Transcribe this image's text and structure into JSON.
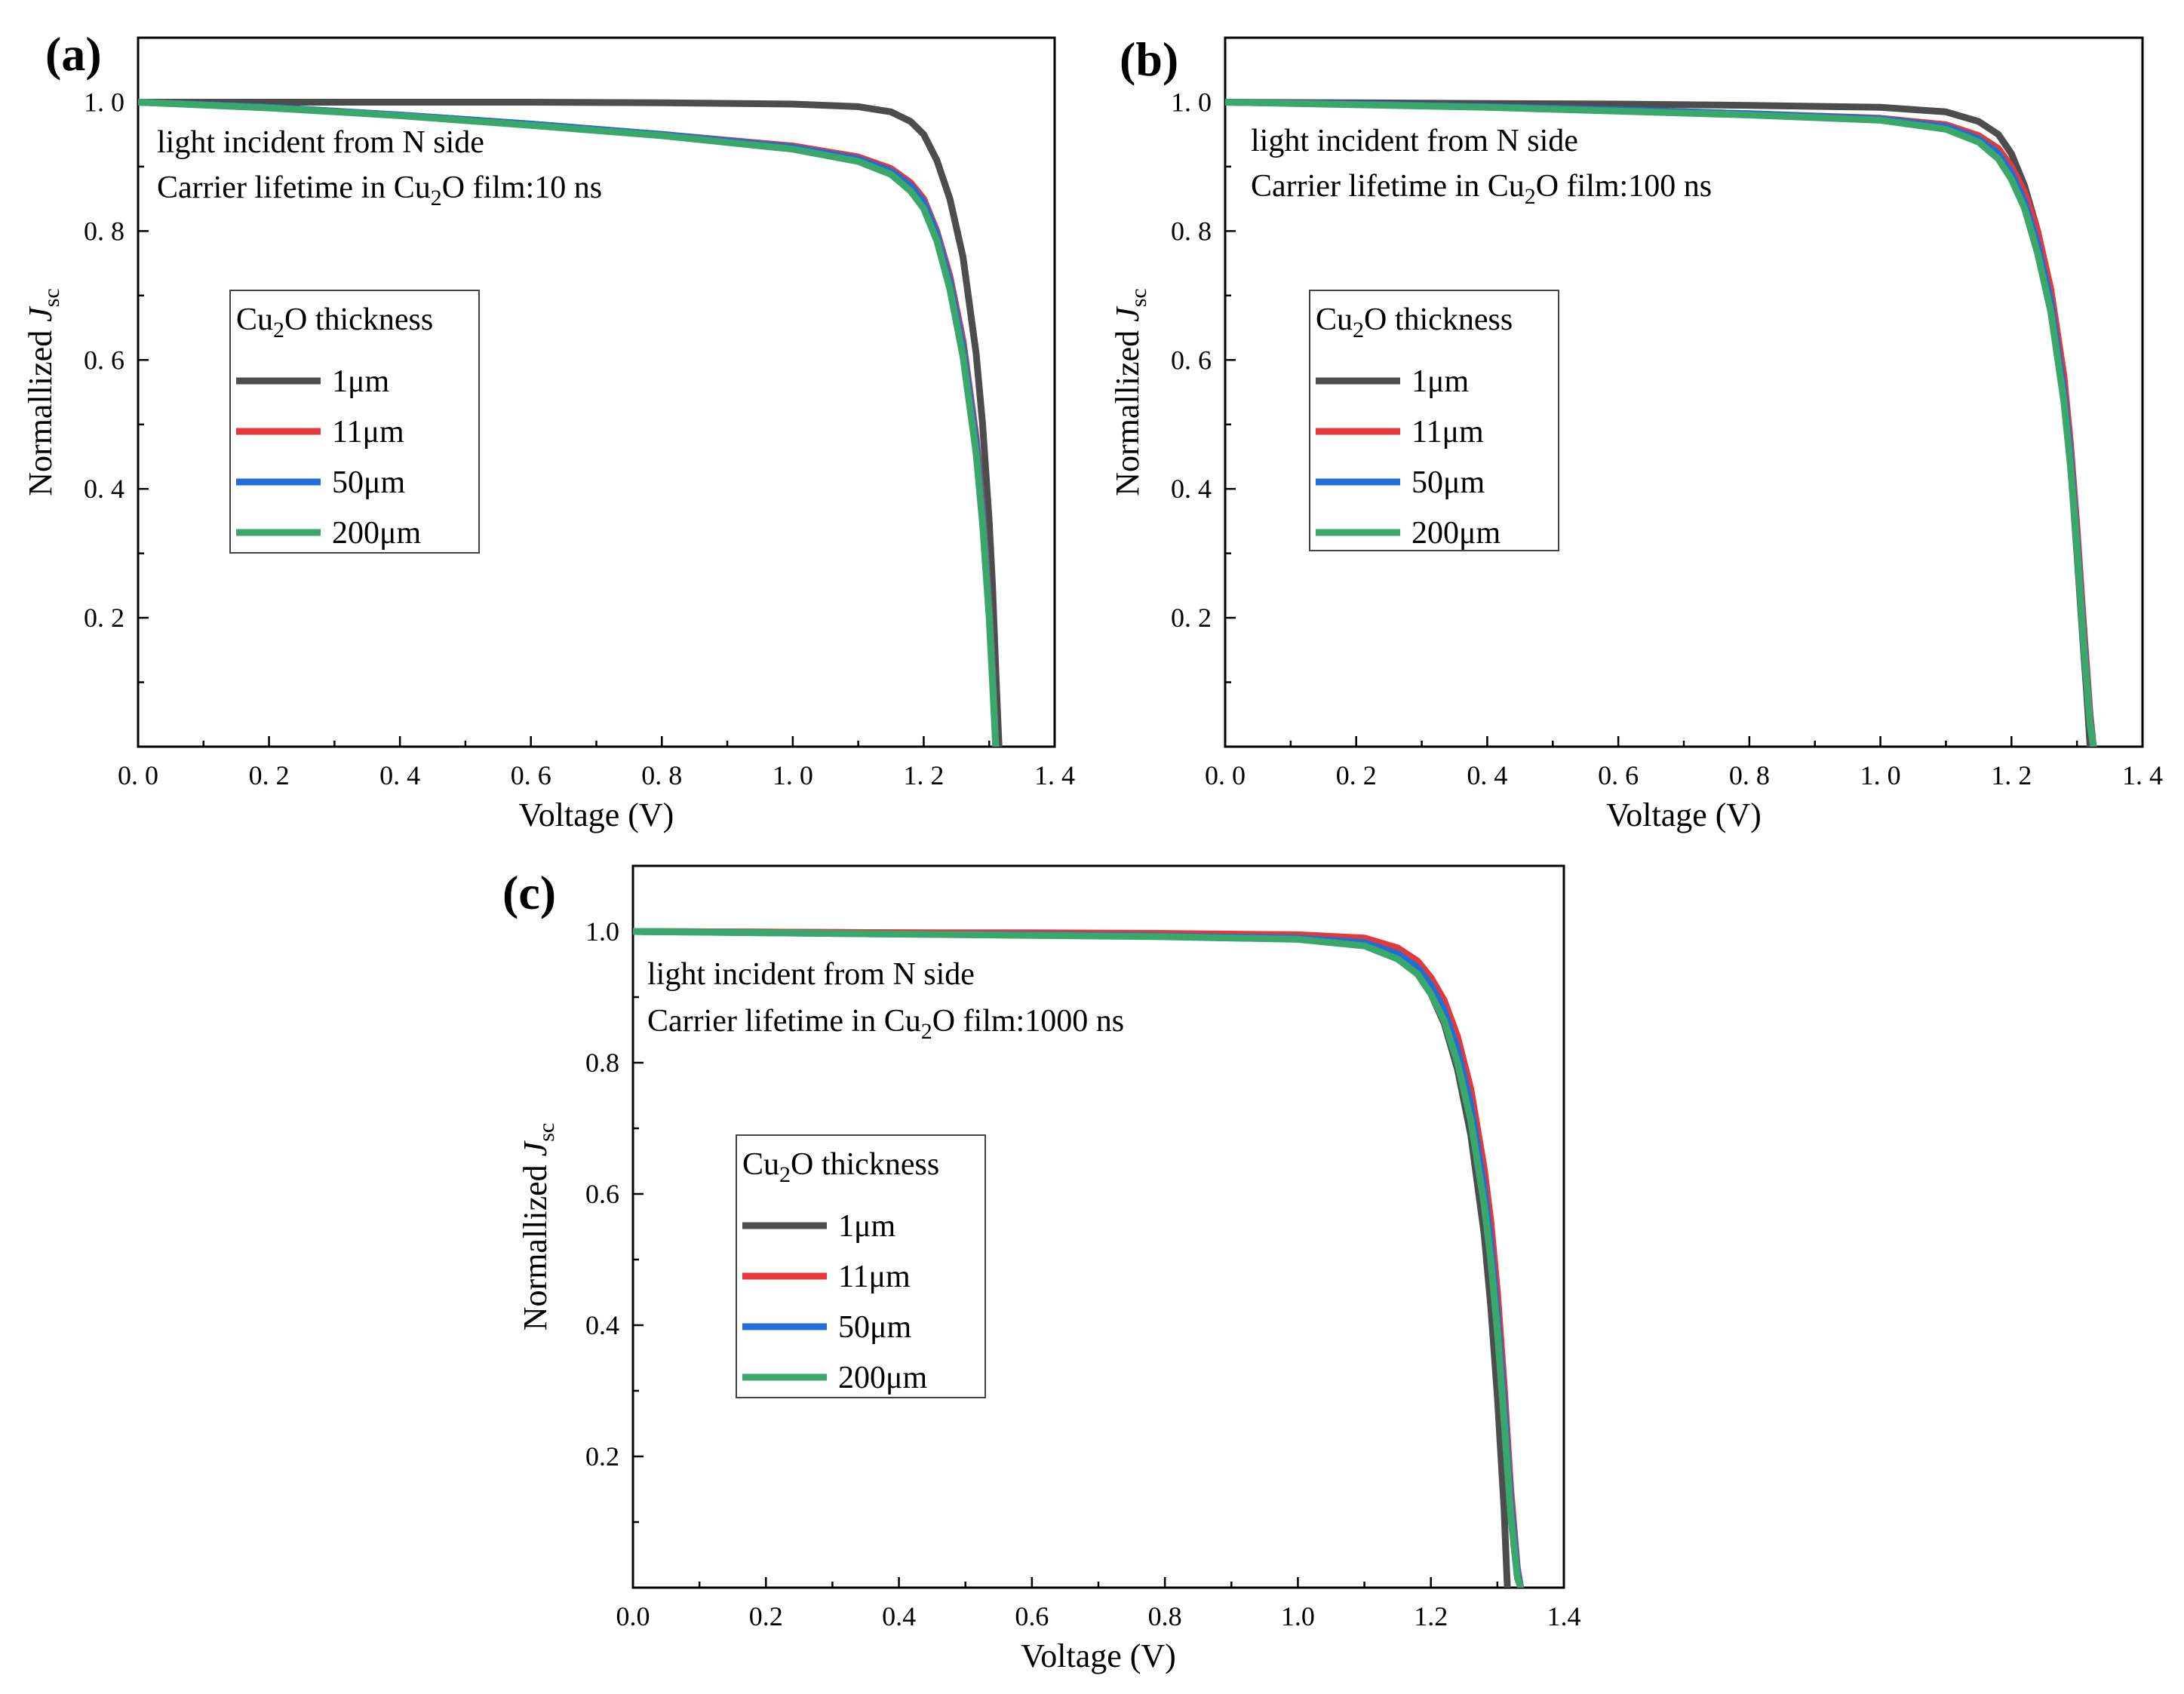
{
  "figure": {
    "panels": [
      {
        "letter": "(a)",
        "annotation_line1": "light incident from N side",
        "annotation_line2_pre": "Carrier lifetime in Cu",
        "annotation_line2_sub": "2",
        "annotation_line2_post": "O film:10 ns",
        "legend_title_pre": "Cu",
        "legend_title_sub": "2",
        "legend_title_post": "O thickness"
      },
      {
        "letter": "(b)",
        "annotation_line1": "light incident from N side",
        "annotation_line2_pre": "Carrier lifetime in Cu",
        "annotation_line2_sub": "2",
        "annotation_line2_post": "O film:100 ns",
        "legend_title_pre": "Cu",
        "legend_title_sub": "2",
        "legend_title_post": "O thickness"
      },
      {
        "letter": "(c)",
        "annotation_line1": "light incident from N side",
        "annotation_line2_pre": "Carrier lifetime in Cu",
        "annotation_line2_sub": "2",
        "annotation_line2_post": "O film:1000 ns",
        "legend_title_pre": "Cu",
        "legend_title_sub": "2",
        "legend_title_post": "O thickness"
      }
    ]
  },
  "chart_data": [
    {
      "type": "line",
      "panel": "(a)",
      "xlabel": "Voltage (V)",
      "ylabel_pre": "Normallized ",
      "ylabel_italic": "J",
      "ylabel_sub": "sc",
      "xlim": [
        0.0,
        1.4
      ],
      "ylim": [
        0.0,
        1.1
      ],
      "xticks": [
        "0. 0",
        "0. 2",
        "0. 4",
        "0. 6",
        "0. 8",
        "1. 0",
        "1. 2",
        "1. 4"
      ],
      "xtick_values": [
        0.0,
        0.2,
        0.4,
        0.6,
        0.8,
        1.0,
        1.2,
        1.4
      ],
      "yticks": [
        "0. 2",
        "0. 4",
        "0. 6",
        "0. 8",
        "1. 0"
      ],
      "ytick_values": [
        0.2,
        0.4,
        0.6,
        0.8,
        1.0
      ],
      "series": [
        {
          "name": "1μm",
          "color": "#4d4d4d",
          "x": [
            0.0,
            0.2,
            0.4,
            0.6,
            0.8,
            1.0,
            1.1,
            1.15,
            1.18,
            1.2,
            1.22,
            1.24,
            1.26,
            1.28,
            1.29,
            1.3,
            1.305,
            1.31,
            1.315
          ],
          "y": [
            1.0,
            1.0,
            1.0,
            1.0,
            0.999,
            0.997,
            0.993,
            0.985,
            0.97,
            0.95,
            0.91,
            0.85,
            0.76,
            0.61,
            0.5,
            0.35,
            0.25,
            0.12,
            0.0
          ]
        },
        {
          "name": "11μm",
          "color": "#e5383b",
          "x": [
            0.0,
            0.2,
            0.4,
            0.6,
            0.8,
            1.0,
            1.1,
            1.15,
            1.18,
            1.2,
            1.22,
            1.24,
            1.26,
            1.28,
            1.29,
            1.3,
            1.305,
            1.31
          ],
          "y": [
            1.0,
            0.992,
            0.98,
            0.966,
            0.95,
            0.932,
            0.915,
            0.897,
            0.875,
            0.85,
            0.8,
            0.73,
            0.63,
            0.48,
            0.37,
            0.22,
            0.12,
            0.0
          ]
        },
        {
          "name": "50μm",
          "color": "#1f6fd6",
          "x": [
            0.0,
            0.2,
            0.4,
            0.6,
            0.8,
            1.0,
            1.1,
            1.15,
            1.18,
            1.2,
            1.22,
            1.24,
            1.26,
            1.28,
            1.29,
            1.3,
            1.305,
            1.31
          ],
          "y": [
            1.0,
            0.992,
            0.98,
            0.966,
            0.95,
            0.93,
            0.912,
            0.893,
            0.87,
            0.845,
            0.795,
            0.722,
            0.62,
            0.47,
            0.36,
            0.21,
            0.11,
            0.0
          ]
        },
        {
          "name": "200μm",
          "color": "#3aa86b",
          "x": [
            0.0,
            0.2,
            0.4,
            0.6,
            0.8,
            1.0,
            1.1,
            1.15,
            1.18,
            1.2,
            1.22,
            1.24,
            1.26,
            1.28,
            1.29,
            1.3,
            1.305,
            1.31
          ],
          "y": [
            1.0,
            0.991,
            0.979,
            0.964,
            0.948,
            0.927,
            0.908,
            0.888,
            0.862,
            0.835,
            0.785,
            0.71,
            0.605,
            0.455,
            0.345,
            0.2,
            0.1,
            0.0
          ]
        }
      ],
      "legend_position": "center-left"
    },
    {
      "type": "line",
      "panel": "(b)",
      "xlabel": "Voltage (V)",
      "ylabel_pre": "Normallized ",
      "ylabel_italic": "J",
      "ylabel_sub": "sc",
      "xlim": [
        0.0,
        1.4
      ],
      "ylim": [
        0.0,
        1.1
      ],
      "xticks": [
        "0. 0",
        "0. 2",
        "0. 4",
        "0. 6",
        "0. 8",
        "1. 0",
        "1. 2",
        "1. 4"
      ],
      "xtick_values": [
        0.0,
        0.2,
        0.4,
        0.6,
        0.8,
        1.0,
        1.2,
        1.4
      ],
      "yticks": [
        "0. 2",
        "0. 4",
        "0. 6",
        "0. 8",
        "1. 0"
      ],
      "ytick_values": [
        0.2,
        0.4,
        0.6,
        0.8,
        1.0
      ],
      "series": [
        {
          "name": "1μm",
          "color": "#4d4d4d",
          "x": [
            0.0,
            0.2,
            0.4,
            0.6,
            0.8,
            1.0,
            1.1,
            1.15,
            1.18,
            1.2,
            1.22,
            1.24,
            1.26,
            1.28,
            1.29,
            1.3,
            1.31,
            1.315,
            1.32
          ],
          "y": [
            1.0,
            0.999,
            0.998,
            0.997,
            0.995,
            0.992,
            0.985,
            0.97,
            0.95,
            0.92,
            0.87,
            0.8,
            0.7,
            0.55,
            0.44,
            0.3,
            0.15,
            0.08,
            0.0
          ]
        },
        {
          "name": "11μm",
          "color": "#e5383b",
          "x": [
            0.0,
            0.2,
            0.4,
            0.6,
            0.8,
            1.0,
            1.1,
            1.15,
            1.18,
            1.2,
            1.22,
            1.24,
            1.26,
            1.28,
            1.29,
            1.3,
            1.31,
            1.32,
            1.325
          ],
          "y": [
            1.0,
            0.997,
            0.993,
            0.988,
            0.982,
            0.975,
            0.965,
            0.948,
            0.928,
            0.9,
            0.86,
            0.8,
            0.71,
            0.575,
            0.47,
            0.34,
            0.19,
            0.05,
            0.0
          ]
        },
        {
          "name": "50μm",
          "color": "#1f6fd6",
          "x": [
            0.0,
            0.2,
            0.4,
            0.6,
            0.8,
            1.0,
            1.1,
            1.15,
            1.18,
            1.2,
            1.22,
            1.24,
            1.26,
            1.28,
            1.29,
            1.3,
            1.31,
            1.32,
            1.325
          ],
          "y": [
            1.0,
            0.997,
            0.993,
            0.988,
            0.982,
            0.974,
            0.962,
            0.943,
            0.92,
            0.89,
            0.846,
            0.78,
            0.69,
            0.55,
            0.45,
            0.32,
            0.17,
            0.04,
            0.0
          ]
        },
        {
          "name": "200μm",
          "color": "#3aa86b",
          "x": [
            0.0,
            0.2,
            0.4,
            0.6,
            0.8,
            1.0,
            1.1,
            1.15,
            1.18,
            1.2,
            1.22,
            1.24,
            1.26,
            1.28,
            1.29,
            1.3,
            1.31,
            1.32,
            1.325
          ],
          "y": [
            1.0,
            0.996,
            0.992,
            0.986,
            0.98,
            0.972,
            0.958,
            0.938,
            0.912,
            0.88,
            0.835,
            0.765,
            0.675,
            0.535,
            0.435,
            0.31,
            0.16,
            0.035,
            0.0
          ]
        }
      ],
      "legend_position": "center-left"
    },
    {
      "type": "line",
      "panel": "(c)",
      "xlabel": "Voltage (V)",
      "ylabel_pre": "Normallized ",
      "ylabel_italic": "J",
      "ylabel_sub": "sc",
      "xlim": [
        0.0,
        1.4
      ],
      "ylim": [
        0.0,
        1.1
      ],
      "xticks": [
        "0.0",
        "0.2",
        "0.4",
        "0.6",
        "0.8",
        "1.0",
        "1.2",
        "1.4"
      ],
      "xtick_values": [
        0.0,
        0.2,
        0.4,
        0.6,
        0.8,
        1.0,
        1.2,
        1.4
      ],
      "yticks": [
        "0.2",
        "0.4",
        "0.6",
        "0.8",
        "1.0"
      ],
      "ytick_values": [
        0.2,
        0.4,
        0.6,
        0.8,
        1.0
      ],
      "series": [
        {
          "name": "1μm",
          "color": "#4d4d4d",
          "x": [
            0.0,
            0.2,
            0.4,
            0.6,
            0.8,
            1.0,
            1.1,
            1.15,
            1.18,
            1.2,
            1.22,
            1.24,
            1.26,
            1.28,
            1.29,
            1.3,
            1.31,
            1.315
          ],
          "y": [
            1.0,
            0.999,
            0.998,
            0.997,
            0.995,
            0.99,
            0.98,
            0.96,
            0.935,
            0.905,
            0.86,
            0.79,
            0.69,
            0.54,
            0.43,
            0.29,
            0.12,
            0.0
          ]
        },
        {
          "name": "11μm",
          "color": "#e5383b",
          "x": [
            0.0,
            0.2,
            0.4,
            0.6,
            0.8,
            1.0,
            1.1,
            1.15,
            1.18,
            1.2,
            1.22,
            1.24,
            1.26,
            1.28,
            1.29,
            1.3,
            1.31,
            1.32,
            1.33,
            1.335
          ],
          "y": [
            1.0,
            0.999,
            0.998,
            0.998,
            0.997,
            0.995,
            0.99,
            0.975,
            0.955,
            0.93,
            0.895,
            0.84,
            0.76,
            0.64,
            0.56,
            0.45,
            0.31,
            0.15,
            0.03,
            0.0
          ]
        },
        {
          "name": "50μm",
          "color": "#1f6fd6",
          "x": [
            0.0,
            0.2,
            0.4,
            0.6,
            0.8,
            1.0,
            1.1,
            1.15,
            1.18,
            1.2,
            1.22,
            1.24,
            1.26,
            1.28,
            1.29,
            1.3,
            1.31,
            1.32,
            1.33,
            1.335
          ],
          "y": [
            1.0,
            0.998,
            0.996,
            0.995,
            0.993,
            0.99,
            0.983,
            0.966,
            0.945,
            0.918,
            0.88,
            0.82,
            0.735,
            0.61,
            0.525,
            0.415,
            0.28,
            0.13,
            0.025,
            0.0
          ]
        },
        {
          "name": "200μm",
          "color": "#3aa86b",
          "x": [
            0.0,
            0.2,
            0.4,
            0.6,
            0.8,
            1.0,
            1.1,
            1.15,
            1.18,
            1.2,
            1.22,
            1.24,
            1.26,
            1.28,
            1.29,
            1.3,
            1.31,
            1.32,
            1.33,
            1.335
          ],
          "y": [
            1.0,
            0.998,
            0.996,
            0.994,
            0.992,
            0.988,
            0.978,
            0.958,
            0.935,
            0.905,
            0.864,
            0.8,
            0.712,
            0.585,
            0.5,
            0.39,
            0.255,
            0.11,
            0.015,
            0.0
          ]
        }
      ],
      "legend_position": "center-left"
    }
  ]
}
